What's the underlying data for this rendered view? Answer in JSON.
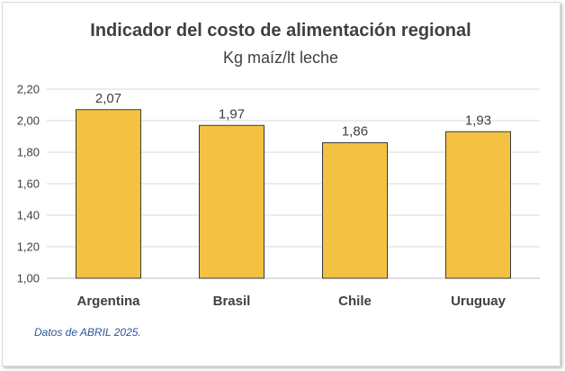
{
  "chart_data": {
    "type": "bar",
    "title": "Indicador del costo de alimentación regional",
    "subtitle": "Kg maíz/lt leche",
    "categories": [
      "Argentina",
      "Brasil",
      "Chile",
      "Uruguay"
    ],
    "values": [
      2.07,
      1.97,
      1.86,
      1.93
    ],
    "data_labels": [
      "2,07",
      "1,97",
      "1,86",
      "1,93"
    ],
    "ylim": [
      1.0,
      2.2
    ],
    "yticks": [
      1.0,
      1.2,
      1.4,
      1.6,
      1.8,
      2.0,
      2.2
    ],
    "ytick_labels": [
      "1,00",
      "1,20",
      "1,40",
      "1,60",
      "1,80",
      "2,00",
      "2,20"
    ],
    "grid": true,
    "bar_color": "#f4c242",
    "bar_edge_color": "#3a3a3a"
  },
  "footnote": "Datos de ABRIL 2025."
}
